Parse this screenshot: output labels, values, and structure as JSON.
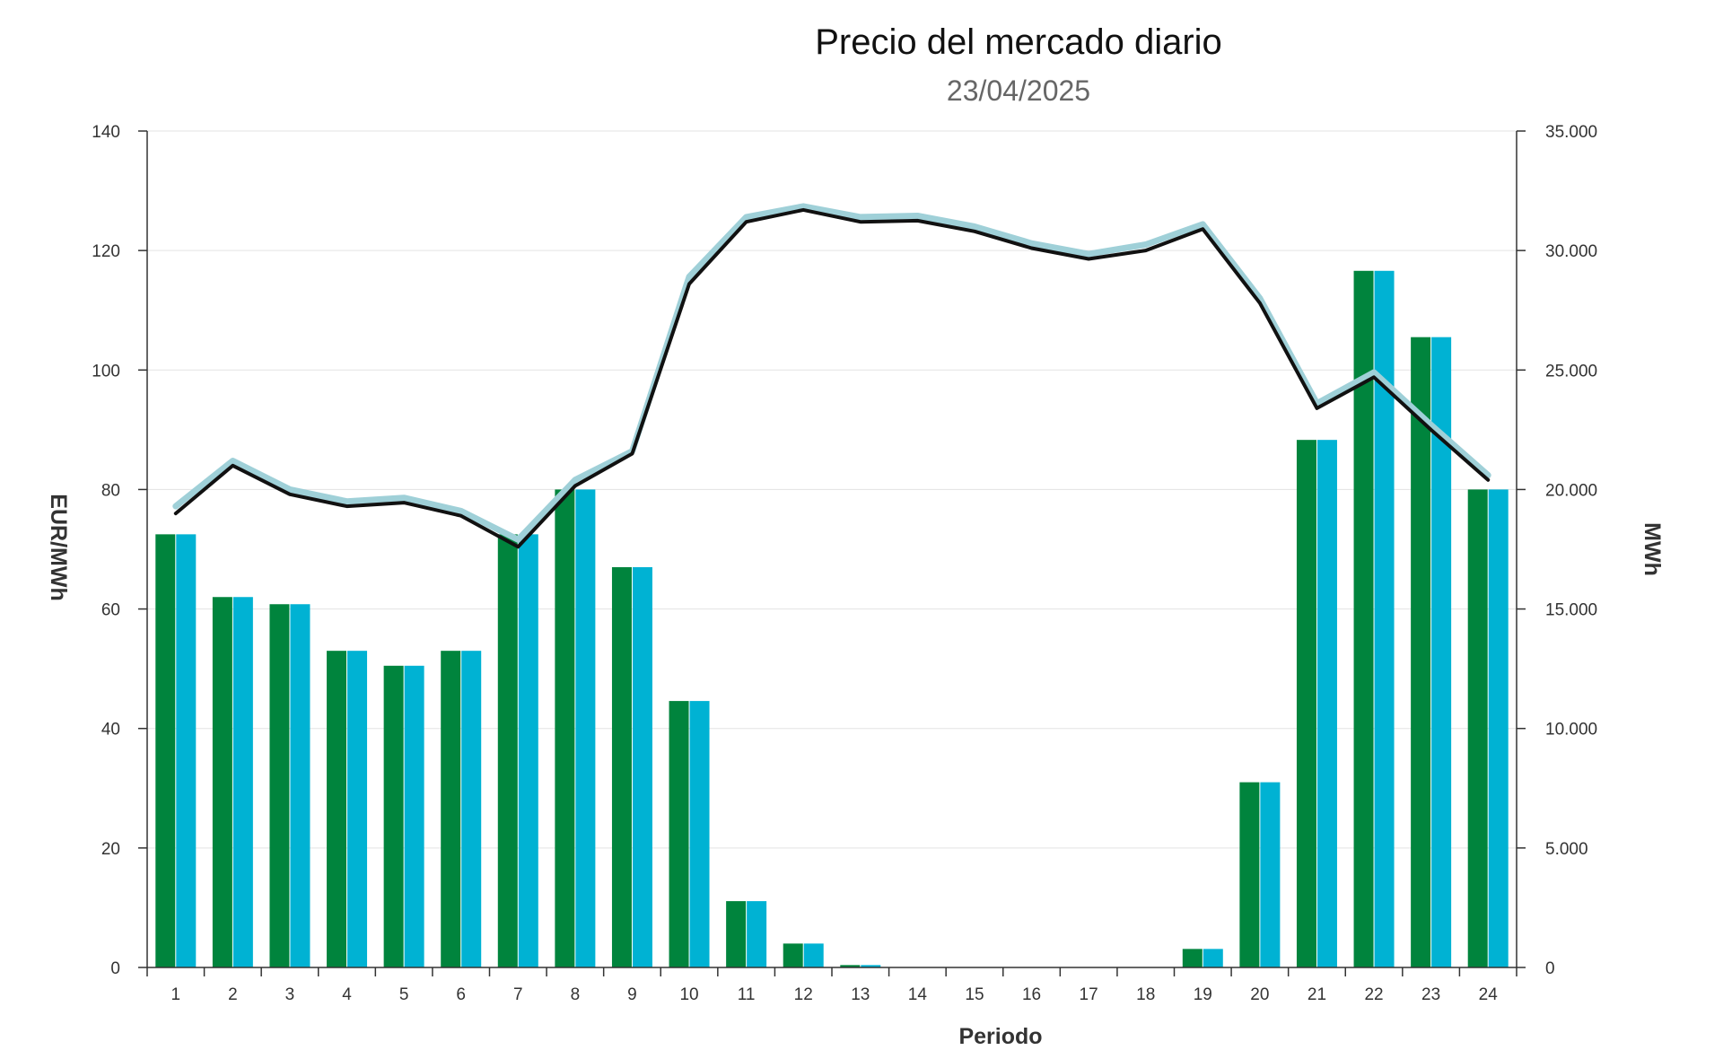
{
  "chart_data": {
    "type": "bar",
    "title": "Precio del mercado diario",
    "subtitle": "23/04/2025",
    "xlabel": "Periodo",
    "ylabel": "EUR/MWh",
    "y2label": "MWh",
    "categories": [
      "1",
      "2",
      "3",
      "4",
      "5",
      "6",
      "7",
      "8",
      "9",
      "10",
      "11",
      "12",
      "13",
      "14",
      "15",
      "16",
      "17",
      "18",
      "19",
      "20",
      "21",
      "22",
      "23",
      "24"
    ],
    "ylim": [
      0,
      140
    ],
    "y2lim": [
      0,
      35000
    ],
    "yticks": [
      "0",
      "20",
      "40",
      "60",
      "80",
      "100",
      "120",
      "140"
    ],
    "y2ticks": [
      "0",
      "5.000",
      "10.000",
      "15.000",
      "20.000",
      "25.000",
      "30.000",
      "35.000"
    ],
    "grid": true,
    "series": [
      {
        "kind": "bar",
        "axis": "left",
        "color": "#00843d",
        "values": [
          72.5,
          62,
          60.8,
          53,
          50.5,
          53,
          72.5,
          80,
          67,
          44.6,
          11.1,
          4,
          0.4,
          0,
          0,
          0,
          0,
          0,
          3.1,
          31,
          88.3,
          116.6,
          105.5,
          80
        ]
      },
      {
        "kind": "bar",
        "axis": "left",
        "color": "#00b2d3",
        "values": [
          72.5,
          62,
          60.8,
          53,
          50.5,
          53,
          72.5,
          80,
          67,
          44.6,
          11.1,
          4,
          0.4,
          0,
          0,
          0,
          0,
          0,
          3.1,
          31,
          88.3,
          116.6,
          105.5,
          80
        ]
      },
      {
        "kind": "line",
        "axis": "right",
        "color": "#111111",
        "values": [
          19000,
          21000,
          19800,
          19300,
          19450,
          18900,
          17600,
          20150,
          21500,
          28600,
          31200,
          31700,
          31200,
          31250,
          30800,
          30100,
          29650,
          30000,
          30900,
          27800,
          23400,
          24700,
          22500,
          20400
        ]
      },
      {
        "kind": "line",
        "axis": "right",
        "color": "#9fd0d8",
        "values": [
          19300,
          21200,
          20000,
          19500,
          19650,
          19100,
          17900,
          20400,
          21600,
          28900,
          31400,
          31850,
          31400,
          31450,
          31000,
          30300,
          29850,
          30250,
          31100,
          28000,
          23600,
          24900,
          22700,
          20600
        ]
      }
    ]
  }
}
